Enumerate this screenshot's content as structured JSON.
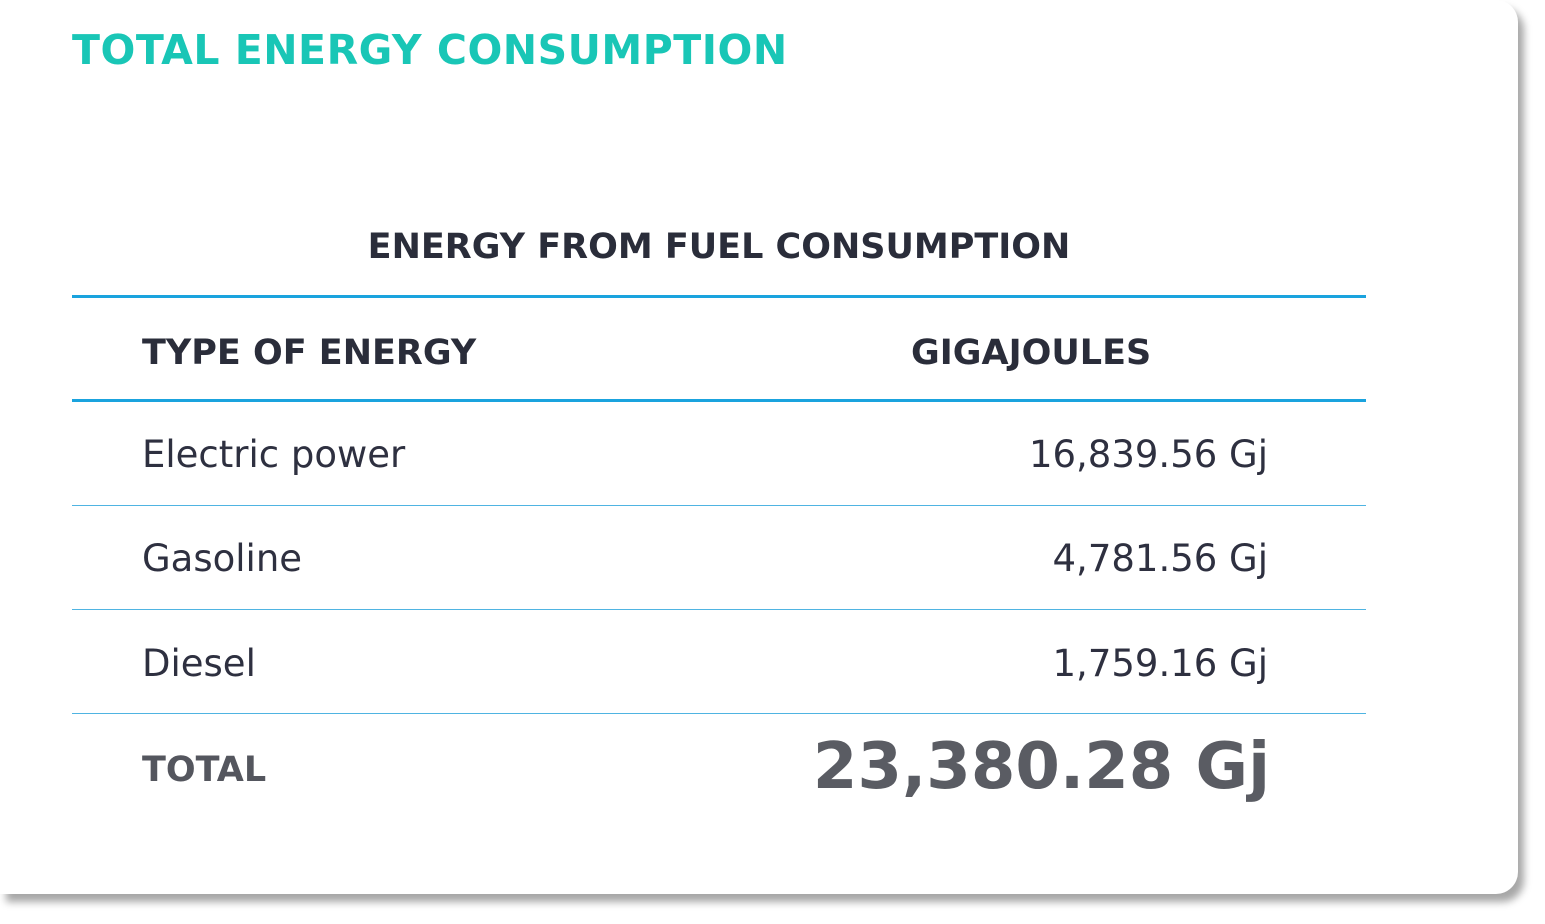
{
  "title": "TOTAL ENERGY CONSUMPTION",
  "table": {
    "caption": "ENERGY FROM FUEL CONSUMPTION",
    "columns": [
      "TYPE OF ENERGY",
      "GIGAJOULES"
    ],
    "rows": [
      {
        "type": "Electric power",
        "value": "16,839.56 Gj"
      },
      {
        "type": "Gasoline",
        "value": "4,781.56 Gj"
      },
      {
        "type": "Diesel",
        "value": "1,759.16 Gj"
      }
    ],
    "total": {
      "label": "TOTAL",
      "value": "23,380.28 Gj"
    }
  },
  "colors": {
    "title": "#19c6b6",
    "rule": "#1aa3de",
    "text": "#2a2d3a",
    "total": "#5a5c63"
  }
}
